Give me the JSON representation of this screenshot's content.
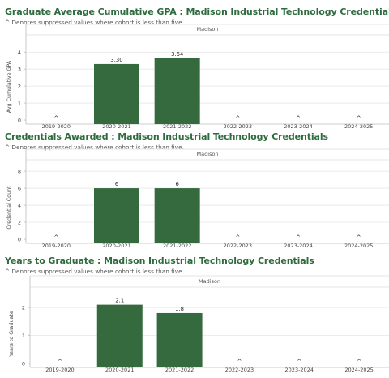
{
  "charts": [
    {
      "title": "Graduate Average Cumulative GPA : Madison Industrial Technology Credentials",
      "subtitle": "^ Denotes suppressed values where cohort is less than five.",
      "facet": "Madison",
      "ylabel": "Avg Cumulative GPA"
    },
    {
      "title": "Credentials Awarded : Madison Industrial Technology Credentials",
      "subtitle": "^ Denotes suppressed values where cohort is less than five.",
      "facet": "Madison",
      "ylabel": "Credential Count"
    },
    {
      "title": "Years to Graduate : Madison Industrial Technology Credentials",
      "subtitle": "^ Denotes suppressed values where cohort is less than five.",
      "facet": "Madison",
      "ylabel": "Years to Graduate"
    }
  ],
  "colors": {
    "bar": "#356a3f",
    "title": "#2e6b3e",
    "grid": "#e6e6e6",
    "axis": "#bdbdbd",
    "text": "#444444"
  },
  "chart_data": [
    {
      "type": "bar",
      "title": "Graduate Average Cumulative GPA : Madison Industrial Technology Credentials",
      "ylabel": "Avg Cumulative GPA",
      "xlabel": "",
      "categories": [
        "2019-2020",
        "2020-2021",
        "2021-2022",
        "2022-2023",
        "2023-2024",
        "2024-2025"
      ],
      "values": [
        null,
        3.3,
        3.64,
        null,
        null,
        null
      ],
      "data_labels": [
        "^",
        "3.30",
        "3.64",
        "^",
        "^",
        "^"
      ],
      "yticks": [
        0,
        1,
        2,
        3,
        4
      ],
      "ylim": [
        0,
        4.3
      ],
      "grid": true
    },
    {
      "type": "bar",
      "title": "Credentials Awarded : Madison Industrial Technology Credentials",
      "ylabel": "Credential Count",
      "xlabel": "",
      "categories": [
        "2019-2020",
        "2020-2021",
        "2021-2022",
        "2022-2023",
        "2023-2024",
        "2024-2025"
      ],
      "values": [
        null,
        6,
        6,
        null,
        null,
        null
      ],
      "data_labels": [
        "^",
        "6",
        "6",
        "^",
        "^",
        "^"
      ],
      "yticks": [
        0,
        2,
        4,
        6,
        8
      ],
      "ylim": [
        0,
        8.2
      ],
      "grid": true
    },
    {
      "type": "bar",
      "title": "Years to Graduate : Madison Industrial Technology Credentials",
      "ylabel": "Years to Graduate",
      "xlabel": "",
      "categories": [
        "2019-2020",
        "2020-2021",
        "2021-2022",
        "2022-2023",
        "2023-2024",
        "2024-2025"
      ],
      "values": [
        null,
        2.1,
        1.8,
        null,
        null,
        null
      ],
      "data_labels": [
        "^",
        "2.1",
        "1.8",
        "^",
        "^",
        "^"
      ],
      "yticks": [
        0,
        1,
        2
      ],
      "ylim": [
        0,
        2.35
      ],
      "grid": true
    }
  ]
}
